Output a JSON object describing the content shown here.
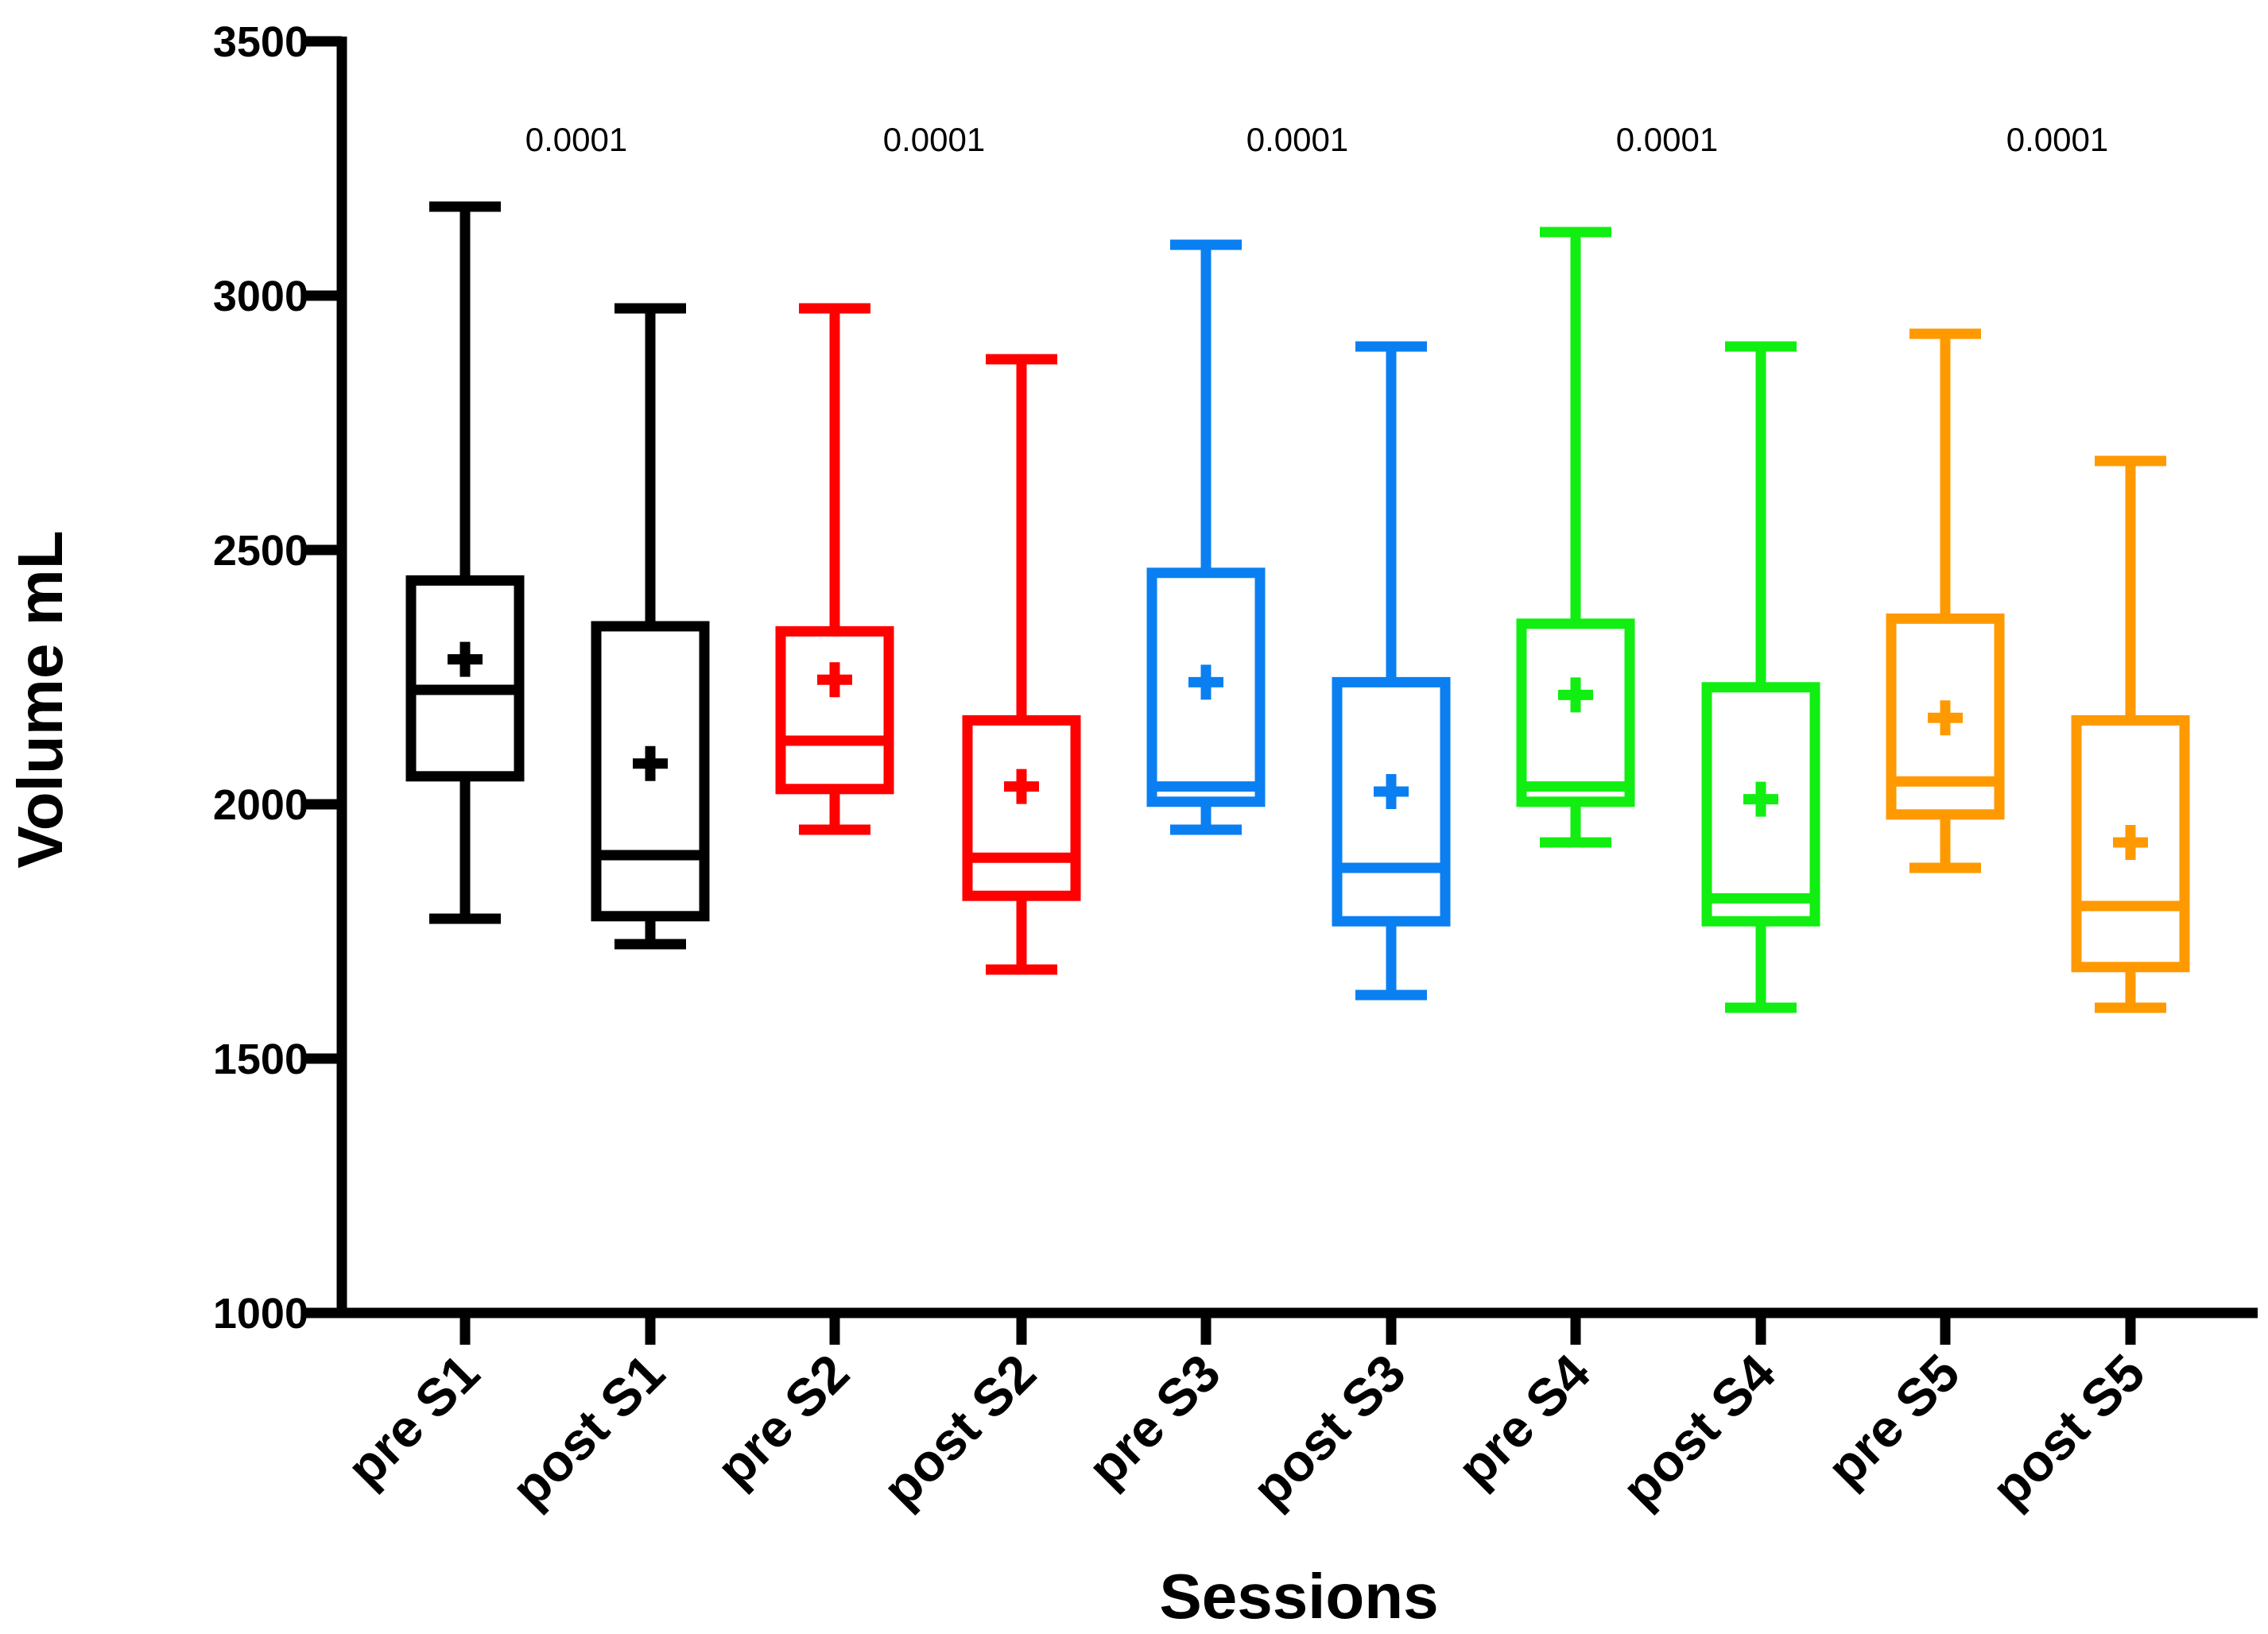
{
  "chart_data": {
    "type": "box",
    "title": "",
    "xlabel": "Sessions",
    "ylabel": "Volume  mL",
    "ylim": [
      1000,
      3500
    ],
    "yticks": [
      1000,
      1500,
      2000,
      2500,
      3000,
      3500
    ],
    "grid": false,
    "categories": [
      "pre S1",
      "post S1",
      "pre S2",
      "post S2",
      "pre S3",
      "post S3",
      "pre S4",
      "post S4",
      "pre S5",
      "post S5"
    ],
    "colors": [
      "#000000",
      "#000000",
      "#ff0000",
      "#ff0000",
      "#0a7ff2",
      "#0a7ff2",
      "#11ee11",
      "#11ee11",
      "#ff9900",
      "#ff9900"
    ],
    "boxes": [
      {
        "name": "pre S1",
        "min": 1775,
        "q1": 2055,
        "median": 2225,
        "q3": 2440,
        "max": 3175,
        "mean": 2285
      },
      {
        "name": "post S1",
        "min": 1725,
        "q1": 1780,
        "median": 1900,
        "q3": 2350,
        "max": 2975,
        "mean": 2080
      },
      {
        "name": "pre S2",
        "min": 1950,
        "q1": 2030,
        "median": 2125,
        "q3": 2340,
        "max": 2975,
        "mean": 2245
      },
      {
        "name": "post S2",
        "min": 1675,
        "q1": 1820,
        "median": 1895,
        "q3": 2165,
        "max": 2875,
        "mean": 2035
      },
      {
        "name": "pre S3",
        "min": 1950,
        "q1": 2005,
        "median": 2035,
        "q3": 2455,
        "max": 3100,
        "mean": 2240
      },
      {
        "name": "post S3",
        "min": 1625,
        "q1": 1770,
        "median": 1875,
        "q3": 2240,
        "max": 2900,
        "mean": 2025
      },
      {
        "name": "pre S4",
        "min": 1925,
        "q1": 2005,
        "median": 2035,
        "q3": 2355,
        "max": 3125,
        "mean": 2215
      },
      {
        "name": "post S4",
        "min": 1600,
        "q1": 1770,
        "median": 1815,
        "q3": 2230,
        "max": 2900,
        "mean": 2010
      },
      {
        "name": "pre S5",
        "min": 1875,
        "q1": 1980,
        "median": 2045,
        "q3": 2365,
        "max": 2925,
        "mean": 2170
      },
      {
        "name": "post S5",
        "min": 1600,
        "q1": 1680,
        "median": 1800,
        "q3": 2165,
        "max": 2675,
        "mean": 1925
      }
    ],
    "annotations": [
      {
        "pair": [
          "pre S1",
          "post S1"
        ],
        "text": "0.0001"
      },
      {
        "pair": [
          "pre S2",
          "post S2"
        ],
        "text": "0.0001"
      },
      {
        "pair": [
          "pre S3",
          "post S3"
        ],
        "text": "0.0001"
      },
      {
        "pair": [
          "pre S4",
          "post S4"
        ],
        "text": "0.0001"
      },
      {
        "pair": [
          "pre S5",
          "post S5"
        ],
        "text": "0.0001"
      }
    ]
  }
}
